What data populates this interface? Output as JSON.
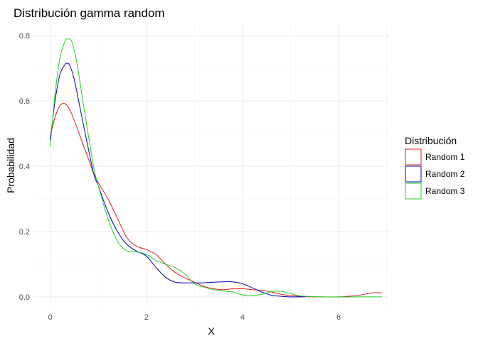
{
  "chart_data": {
    "type": "line",
    "title": "Distribución gamma random",
    "xlabel": "X",
    "ylabel": "Probabilidad",
    "xlim": [
      -0.35,
      7.05
    ],
    "ylim": [
      -0.035,
      0.835
    ],
    "x_ticks": [
      0,
      2,
      4,
      6
    ],
    "x_tick_labels": [
      "0",
      "2",
      "4",
      "6"
    ],
    "y_ticks": [
      0.0,
      0.2,
      0.4,
      0.6,
      0.8
    ],
    "y_tick_labels": [
      "0.0",
      "0.2",
      "0.4",
      "0.6",
      "0.8"
    ],
    "grid": true,
    "legend": {
      "title": "Distribución",
      "position": "right"
    },
    "series": [
      {
        "name": "Random 1",
        "color": "#e41a1c",
        "x": [
          0,
          0.1,
          0.2,
          0.3,
          0.4,
          0.5,
          0.7,
          0.9,
          1.0,
          1.2,
          1.4,
          1.6,
          1.8,
          2.0,
          2.2,
          2.4,
          2.6,
          2.8,
          3.0,
          3.2,
          3.4,
          3.6,
          3.8,
          4.0,
          4.2,
          4.4,
          4.6,
          4.8,
          5.0,
          5.3,
          5.6,
          6.0,
          6.2,
          6.4,
          6.6,
          6.8,
          6.9
        ],
        "y": [
          0.49,
          0.55,
          0.585,
          0.592,
          0.575,
          0.54,
          0.46,
          0.38,
          0.35,
          0.3,
          0.24,
          0.18,
          0.155,
          0.145,
          0.13,
          0.1,
          0.075,
          0.058,
          0.045,
          0.032,
          0.025,
          0.022,
          0.025,
          0.025,
          0.022,
          0.02,
          0.015,
          0.008,
          0.004,
          0.001,
          0.0,
          0.0,
          0.002,
          0.004,
          0.01,
          0.013,
          0.012
        ]
      },
      {
        "name": "Random 2",
        "color": "#0000cc",
        "x": [
          0,
          0.1,
          0.2,
          0.3,
          0.35,
          0.4,
          0.5,
          0.7,
          0.9,
          1.0,
          1.2,
          1.4,
          1.6,
          1.8,
          2.0,
          2.2,
          2.4,
          2.6,
          2.8,
          3.0,
          3.2,
          3.4,
          3.6,
          3.8,
          4.0,
          4.2,
          4.4,
          4.6,
          4.8,
          5.0,
          5.3
        ],
        "y": [
          0.48,
          0.6,
          0.68,
          0.71,
          0.715,
          0.71,
          0.665,
          0.52,
          0.38,
          0.34,
          0.26,
          0.2,
          0.16,
          0.14,
          0.125,
          0.09,
          0.06,
          0.045,
          0.043,
          0.043,
          0.043,
          0.045,
          0.046,
          0.046,
          0.04,
          0.028,
          0.015,
          0.005,
          0.002,
          0.0,
          0.0
        ]
      },
      {
        "name": "Random 3",
        "color": "#1fd11f",
        "x": [
          0,
          0.1,
          0.2,
          0.3,
          0.38,
          0.45,
          0.55,
          0.7,
          0.9,
          1.0,
          1.2,
          1.4,
          1.6,
          1.8,
          2.0,
          2.2,
          2.4,
          2.6,
          2.8,
          3.0,
          3.2,
          3.4,
          3.6,
          3.8,
          4.0,
          4.2,
          4.4,
          4.6,
          4.8,
          5.0,
          5.2,
          5.5,
          6.0,
          6.5,
          6.9
        ],
        "y": [
          0.46,
          0.62,
          0.73,
          0.78,
          0.79,
          0.78,
          0.72,
          0.58,
          0.4,
          0.34,
          0.24,
          0.17,
          0.14,
          0.138,
          0.13,
          0.112,
          0.1,
          0.09,
          0.07,
          0.04,
          0.03,
          0.022,
          0.018,
          0.015,
          0.006,
          0.004,
          0.008,
          0.016,
          0.017,
          0.01,
          0.003,
          0.001,
          0.0,
          0.0,
          0.0
        ]
      }
    ]
  }
}
